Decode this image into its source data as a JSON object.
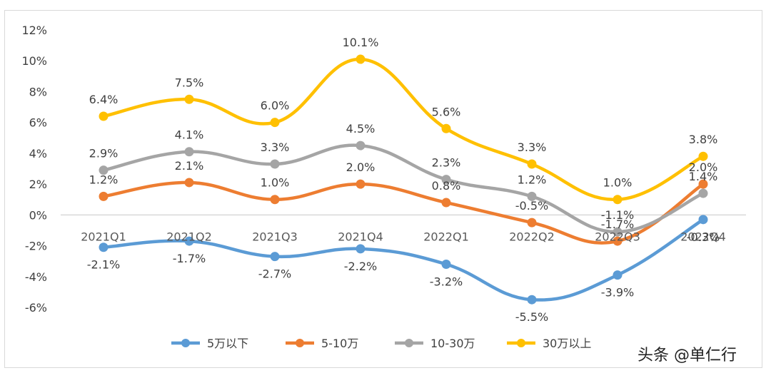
{
  "chart_data": {
    "type": "line",
    "categories": [
      "2021Q1",
      "2021Q2",
      "2021Q3",
      "2021Q4",
      "2022Q1",
      "2022Q2",
      "2022Q3",
      "2022Q4"
    ],
    "ylim": [
      -6,
      12
    ],
    "yticks": [
      -6,
      -4,
      -2,
      0,
      2,
      4,
      6,
      8,
      10,
      12
    ],
    "ytick_labels": [
      "-6%",
      "-4%",
      "-2%",
      "0%",
      "2%",
      "4%",
      "6%",
      "8%",
      "10%",
      "12%"
    ],
    "series": [
      {
        "name": "5万以下",
        "color": "#5B9BD5",
        "values": [
          -2.1,
          -1.7,
          -2.7,
          -2.2,
          -3.2,
          -5.5,
          -3.9,
          -0.3
        ],
        "labels": [
          "-2.1%",
          "-1.7%",
          "-2.7%",
          "-2.2%",
          "-3.2%",
          "-5.5%",
          "-3.9%",
          "-0.3%"
        ]
      },
      {
        "name": "5-10万",
        "color": "#ED7D31",
        "values": [
          1.2,
          2.1,
          1.0,
          2.0,
          0.8,
          -0.5,
          -1.7,
          2.0
        ],
        "labels": [
          "1.2%",
          "2.1%",
          "1.0%",
          "2.0%",
          "0.8%",
          "-0.5%",
          "-1.7%",
          "2.0%"
        ]
      },
      {
        "name": "10-30万",
        "color": "#A5A5A5",
        "values": [
          2.9,
          4.1,
          3.3,
          4.5,
          2.3,
          1.2,
          -1.1,
          1.4
        ],
        "labels": [
          "2.9%",
          "4.1%",
          "3.3%",
          "4.5%",
          "2.3%",
          "1.2%",
          "-1.1%",
          "1.4%"
        ]
      },
      {
        "name": "30万以上",
        "color": "#FFC000",
        "values": [
          6.4,
          7.5,
          6.0,
          10.1,
          5.6,
          3.3,
          1.0,
          3.8
        ],
        "labels": [
          "6.4%",
          "7.5%",
          "6.0%",
          "10.1%",
          "5.6%",
          "3.3%",
          "1.0%",
          "3.8%"
        ]
      }
    ],
    "legend_position": "bottom",
    "title": "",
    "xlabel": "",
    "ylabel": ""
  },
  "watermark": "头条 @单仁行"
}
